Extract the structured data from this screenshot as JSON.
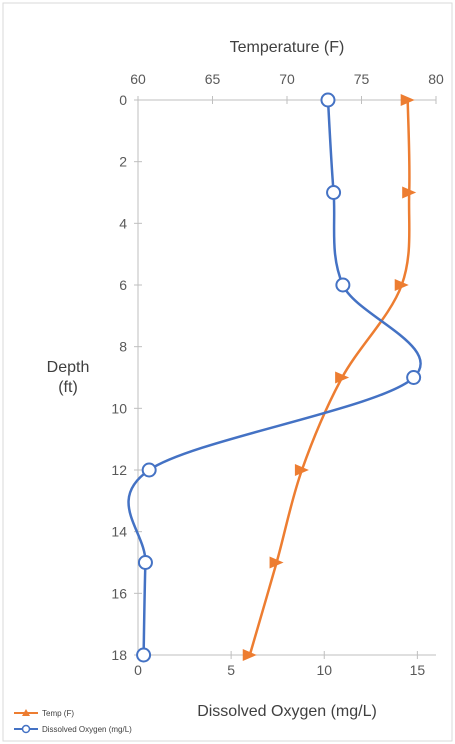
{
  "chart_data": {
    "type": "line",
    "top_axis": {
      "label": "Temperature (F)",
      "range": [
        60,
        80
      ],
      "ticks": [
        60,
        65,
        70,
        75,
        80
      ]
    },
    "bottom_axis": {
      "label": "Dissolved Oxygen (mg/L)",
      "range": [
        0,
        16
      ],
      "ticks": [
        0,
        5,
        10,
        15
      ]
    },
    "y_axis": {
      "label": [
        "Depth",
        "(ft)"
      ],
      "range": [
        0,
        18
      ],
      "inverted": true,
      "ticks": [
        0,
        2,
        4,
        6,
        8,
        10,
        12,
        14,
        16,
        18
      ]
    },
    "series": [
      {
        "name": "Temp (F)",
        "axis": "top",
        "color": "#ED7D31",
        "marker": "triangle",
        "points": [
          {
            "x": 78.1,
            "depth": 0
          },
          {
            "x": 78.2,
            "depth": 3
          },
          {
            "x": 77.7,
            "depth": 6
          },
          {
            "x": 73.7,
            "depth": 9
          },
          {
            "x": 71.0,
            "depth": 12
          },
          {
            "x": 69.3,
            "depth": 15
          },
          {
            "x": 67.5,
            "depth": 18
          }
        ]
      },
      {
        "name": "Dissolved Oxygen (mg/L)",
        "axis": "bottom",
        "color": "#4472C4",
        "marker": "circle",
        "points": [
          {
            "x": 10.2,
            "depth": 0
          },
          {
            "x": 10.5,
            "depth": 3
          },
          {
            "x": 11.0,
            "depth": 6
          },
          {
            "x": 14.8,
            "depth": 9
          },
          {
            "x": 0.6,
            "depth": 12
          },
          {
            "x": 0.4,
            "depth": 15
          },
          {
            "x": 0.3,
            "depth": 18
          }
        ]
      }
    ],
    "grid": false,
    "legend": "bottom-left"
  }
}
